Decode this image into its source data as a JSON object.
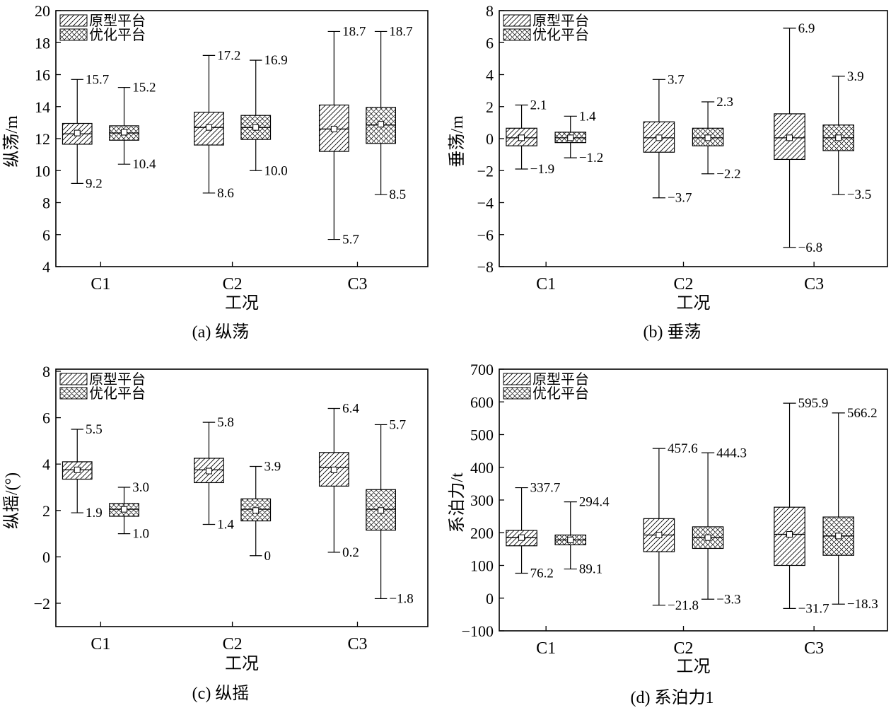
{
  "legend": [
    "原型平台",
    "优化平台"
  ],
  "chart_data": [
    {
      "type": "box",
      "caption": "(a) 纵荡",
      "ylabel": "纵荡/m",
      "xlabel": "工况",
      "categories": [
        "C1",
        "C2",
        "C3"
      ],
      "ylim": [
        4,
        20
      ],
      "yticks": [
        "4",
        "6",
        "8",
        "10",
        "12",
        "14",
        "16",
        "18",
        "20"
      ],
      "series": [
        {
          "name": "原型平台",
          "pattern": "hatch",
          "boxes": [
            {
              "min": 9.2,
              "q1": 11.65,
              "median": 12.3,
              "mean": 12.35,
              "q3": 12.95,
              "max": 15.7,
              "max_label": "15.7",
              "min_label": "9.2"
            },
            {
              "min": 8.6,
              "q1": 11.6,
              "median": 12.7,
              "mean": 12.7,
              "q3": 13.65,
              "max": 17.2,
              "max_label": "17.2",
              "min_label": "8.6"
            },
            {
              "min": 5.7,
              "q1": 11.2,
              "median": 12.6,
              "mean": 12.6,
              "q3": 14.1,
              "max": 18.7,
              "max_label": "18.7",
              "min_label": "5.7"
            }
          ]
        },
        {
          "name": "优化平台",
          "pattern": "cross",
          "boxes": [
            {
              "min": 10.4,
              "q1": 11.9,
              "median": 12.35,
              "mean": 12.4,
              "q3": 12.8,
              "max": 15.2,
              "max_label": "15.2",
              "min_label": "10.4"
            },
            {
              "min": 10.0,
              "q1": 11.95,
              "median": 12.7,
              "mean": 12.7,
              "q3": 13.45,
              "max": 16.9,
              "max_label": "16.9",
              "min_label": "10.0"
            },
            {
              "min": 8.5,
              "q1": 11.7,
              "median": 12.85,
              "mean": 12.9,
              "q3": 13.95,
              "max": 18.7,
              "max_label": "18.7",
              "min_label": "8.5"
            }
          ]
        }
      ]
    },
    {
      "type": "box",
      "caption": "(b) 垂荡",
      "ylabel": "垂荡/m",
      "xlabel": "工况",
      "categories": [
        "C1",
        "C2",
        "C3"
      ],
      "ylim": [
        -8,
        8
      ],
      "yticks": [
        "−8",
        "−6",
        "−4",
        "−2",
        "0",
        "2",
        "4",
        "6",
        "8"
      ],
      "series": [
        {
          "name": "原型平台",
          "pattern": "hatch",
          "boxes": [
            {
              "min": -1.9,
              "q1": -0.45,
              "median": 0.05,
              "mean": 0.05,
              "q3": 0.65,
              "max": 2.1,
              "max_label": "2.1",
              "min_label": "−1.9"
            },
            {
              "min": -3.7,
              "q1": -0.85,
              "median": 0.05,
              "mean": 0.05,
              "q3": 1.05,
              "max": 3.7,
              "max_label": "3.7",
              "min_label": "−3.7"
            },
            {
              "min": -6.8,
              "q1": -1.3,
              "median": 0.05,
              "mean": 0.05,
              "q3": 1.55,
              "max": 6.9,
              "max_label": "6.9",
              "min_label": "−6.8"
            }
          ]
        },
        {
          "name": "优化平台",
          "pattern": "cross",
          "boxes": [
            {
              "min": -1.2,
              "q1": -0.25,
              "median": 0.05,
              "mean": 0.05,
              "q3": 0.4,
              "max": 1.4,
              "max_label": "1.4",
              "min_label": "−1.2"
            },
            {
              "min": -2.2,
              "q1": -0.45,
              "median": 0.05,
              "mean": 0.05,
              "q3": 0.65,
              "max": 2.3,
              "max_label": "2.3",
              "min_label": "−2.2"
            },
            {
              "min": -3.5,
              "q1": -0.75,
              "median": 0.05,
              "mean": 0.05,
              "q3": 0.85,
              "max": 3.9,
              "max_label": "3.9",
              "min_label": "−3.5"
            }
          ]
        }
      ]
    },
    {
      "type": "box",
      "caption": "(c) 纵摇",
      "ylabel": "纵摇/(°)",
      "xlabel": "工况",
      "categories": [
        "C1",
        "C2",
        "C3"
      ],
      "ylim": [
        -3,
        8
      ],
      "yticks": [
        "−2",
        "0",
        "2",
        "4",
        "6",
        "8"
      ],
      "series": [
        {
          "name": "原型平台",
          "pattern": "hatch",
          "boxes": [
            {
              "min": 1.9,
              "q1": 3.35,
              "median": 3.75,
              "mean": 3.75,
              "q3": 4.1,
              "max": 5.5,
              "max_label": "5.5",
              "min_label": "1.9"
            },
            {
              "min": 1.4,
              "q1": 3.2,
              "median": 3.75,
              "mean": 3.7,
              "q3": 4.25,
              "max": 5.8,
              "max_label": "5.8",
              "min_label": "1.4"
            },
            {
              "min": 0.2,
              "q1": 3.05,
              "median": 3.85,
              "mean": 3.75,
              "q3": 4.5,
              "max": 6.4,
              "max_label": "6.4",
              "min_label": "0.2"
            }
          ]
        },
        {
          "name": "优化平台",
          "pattern": "cross",
          "boxes": [
            {
              "min": 1.0,
              "q1": 1.75,
              "median": 2.05,
              "mean": 2.05,
              "q3": 2.3,
              "max": 3.0,
              "max_label": "3.0",
              "min_label": "1.0"
            },
            {
              "min": 0.05,
              "q1": 1.55,
              "median": 2.05,
              "mean": 2.0,
              "q3": 2.5,
              "max": 3.9,
              "max_label": "3.9",
              "min_label": "0"
            },
            {
              "min": -1.8,
              "q1": 1.15,
              "median": 2.05,
              "mean": 2.0,
              "q3": 2.9,
              "max": 5.7,
              "max_label": "5.7",
              "min_label": "−1.8"
            }
          ]
        }
      ]
    },
    {
      "type": "box",
      "caption": "(d) 系泊力1",
      "ylabel": "系泊力/t",
      "xlabel": "工况",
      "categories": [
        "C1",
        "C2",
        "C3"
      ],
      "ylim": [
        -100,
        700
      ],
      "yticks": [
        "−100",
        "0",
        "100",
        "200",
        "300",
        "400",
        "500",
        "600",
        "700"
      ],
      "series": [
        {
          "name": "原型平台",
          "pattern": "hatch",
          "boxes": [
            {
              "min": 76.2,
              "q1": 160,
              "median": 185,
              "mean": 185,
              "q3": 207,
              "max": 337.7,
              "max_label": "337.7",
              "min_label": "76.2"
            },
            {
              "min": -21.8,
              "q1": 142,
              "median": 193,
              "mean": 193,
              "q3": 243,
              "max": 457.6,
              "max_label": "457.6",
              "min_label": "−21.8"
            },
            {
              "min": -31.7,
              "q1": 100,
              "median": 195,
              "mean": 195,
              "q3": 278,
              "max": 595.9,
              "max_label": "595.9",
              "min_label": "−31.7"
            }
          ]
        },
        {
          "name": "优化平台",
          "pattern": "cross",
          "boxes": [
            {
              "min": 89.1,
              "q1": 163,
              "median": 178,
              "mean": 178,
              "q3": 193,
              "max": 294.4,
              "max_label": "294.4",
              "min_label": "89.1"
            },
            {
              "min": -3.3,
              "q1": 152,
              "median": 185,
              "mean": 185,
              "q3": 218,
              "max": 444.3,
              "max_label": "444.3",
              "min_label": "−3.3"
            },
            {
              "min": -18.3,
              "q1": 131,
              "median": 190,
              "mean": 190,
              "q3": 248,
              "max": 566.2,
              "max_label": "566.2",
              "min_label": "−18.3"
            }
          ]
        }
      ]
    }
  ]
}
